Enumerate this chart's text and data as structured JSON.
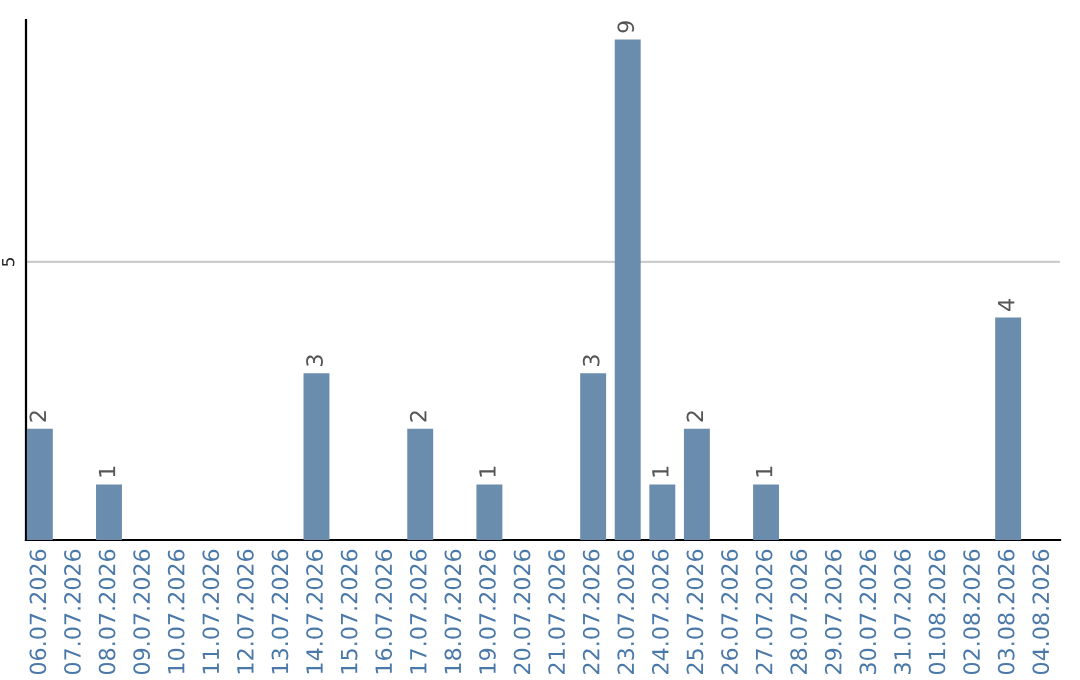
{
  "chart_data": {
    "type": "bar",
    "categories": [
      "06.07.2026",
      "07.07.2026",
      "08.07.2026",
      "09.07.2026",
      "10.07.2026",
      "11.07.2026",
      "12.07.2026",
      "13.07.2026",
      "14.07.2026",
      "15.07.2026",
      "16.07.2026",
      "17.07.2026",
      "18.07.2026",
      "19.07.2026",
      "20.07.2026",
      "21.07.2026",
      "22.07.2026",
      "23.07.2026",
      "24.07.2026",
      "25.07.2026",
      "26.07.2026",
      "27.07.2026",
      "28.07.2026",
      "29.07.2026",
      "30.07.2026",
      "31.07.2026",
      "01.08.2026",
      "02.08.2026",
      "03.08.2026",
      "04.08.2026"
    ],
    "values": [
      2,
      0,
      1,
      0,
      0,
      0,
      0,
      0,
      3,
      0,
      0,
      2,
      0,
      1,
      0,
      0,
      3,
      9,
      1,
      2,
      0,
      1,
      0,
      0,
      0,
      0,
      0,
      0,
      4,
      0
    ],
    "value_labels": [
      "2",
      null,
      "1",
      null,
      null,
      null,
      null,
      null,
      "3",
      null,
      null,
      "2",
      null,
      "1",
      null,
      null,
      "3",
      "9",
      "1",
      "2",
      null,
      "1",
      null,
      null,
      null,
      null,
      null,
      null,
      "4",
      null
    ],
    "color": "#6a8cad",
    "ylim": [
      0,
      9.35
    ],
    "yticks": [
      5
    ],
    "grid": "y"
  }
}
